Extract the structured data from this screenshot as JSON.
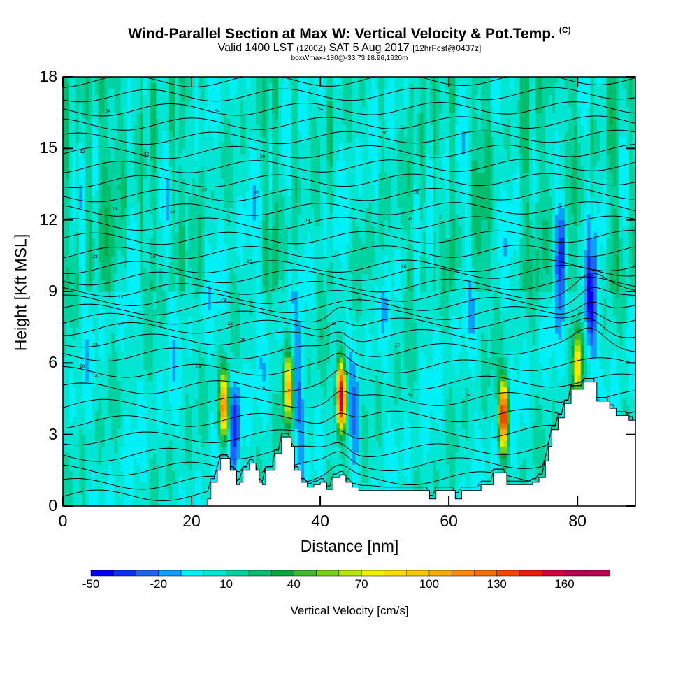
{
  "title": {
    "main": "Wind-Parallel Section at Max W: Vertical Velocity & Pot.Temp.",
    "copyright": "(C)",
    "valid_prefix": "Valid 1400 LST",
    "utc": "(1200Z)",
    "date": "SAT 5 Aug 2017",
    "forecast": "[12hrFcst@0437z]",
    "box": "boxWmax=180@-33.73,18.96,1620m"
  },
  "chart_data": {
    "type": "heatmap",
    "xlabel": "Distance [nm]",
    "ylabel": "Height [Kft MSL]",
    "xlim": [
      0,
      89
    ],
    "ylim": [
      0,
      18
    ],
    "x_ticks": [
      "0",
      "20",
      "40",
      "60",
      "80"
    ],
    "x_tick_values": [
      0,
      20,
      40,
      60,
      80
    ],
    "y_ticks": [
      "0",
      "3",
      "6",
      "9",
      "12",
      "15",
      "18"
    ],
    "y_tick_values": [
      0,
      3,
      6,
      9,
      12,
      15,
      18
    ],
    "colorbar": {
      "title": "Vertical Velocity [cm/s]",
      "labels": [
        "-50",
        "-20",
        "10",
        "40",
        "70",
        "100",
        "130",
        "160"
      ],
      "label_values": [
        -50,
        -20,
        10,
        40,
        70,
        100,
        130,
        160
      ],
      "min": -50,
      "max": 180,
      "step": 10,
      "colors": [
        "#0000f0",
        "#0a32f0",
        "#1e64f5",
        "#0aa0f5",
        "#00f0f8",
        "#00e6d2",
        "#00d2a0",
        "#00be6e",
        "#00aa3c",
        "#3cbe28",
        "#78d214",
        "#b4e60a",
        "#f0f000",
        "#fadc00",
        "#fac800",
        "#faaa00",
        "#fa8c00",
        "#fa6e00",
        "#f54600",
        "#e61e0a",
        "#d2003c",
        "#be0050",
        "#be0050"
      ]
    },
    "terrain": [
      [
        0,
        0
      ],
      [
        22.5,
        0
      ],
      [
        22.5,
        0.3
      ],
      [
        23,
        0.3
      ],
      [
        23,
        1.0
      ],
      [
        24,
        1.0
      ],
      [
        24,
        1.5
      ],
      [
        24.5,
        1.5
      ],
      [
        24.5,
        2.0
      ],
      [
        26,
        2.0
      ],
      [
        26,
        1.5
      ],
      [
        27,
        1.5
      ],
      [
        27,
        0.9
      ],
      [
        27.5,
        0.9
      ],
      [
        27.5,
        1.0
      ],
      [
        28,
        1.0
      ],
      [
        28,
        1.5
      ],
      [
        29,
        1.5
      ],
      [
        29,
        1.8
      ],
      [
        30,
        1.8
      ],
      [
        30,
        1.5
      ],
      [
        30.5,
        1.5
      ],
      [
        30.5,
        1.0
      ],
      [
        31,
        1.0
      ],
      [
        31,
        0.9
      ],
      [
        31.5,
        0.9
      ],
      [
        31.5,
        1.5
      ],
      [
        33,
        1.5
      ],
      [
        33,
        2.2
      ],
      [
        34,
        2.2
      ],
      [
        34,
        2.9
      ],
      [
        35.5,
        2.9
      ],
      [
        35.5,
        2.5
      ],
      [
        36,
        2.5
      ],
      [
        36,
        1.5
      ],
      [
        37,
        1.5
      ],
      [
        37,
        1.0
      ],
      [
        38,
        1.0
      ],
      [
        38,
        0.8
      ],
      [
        39,
        0.8
      ],
      [
        39,
        0.9
      ],
      [
        40,
        0.9
      ],
      [
        40,
        1.0
      ],
      [
        41,
        1.0
      ],
      [
        41,
        0.7
      ],
      [
        42,
        0.7
      ],
      [
        42,
        1.2
      ],
      [
        43,
        1.2
      ],
      [
        43,
        1.3
      ],
      [
        44,
        1.3
      ],
      [
        44,
        1.0
      ],
      [
        45,
        1.0
      ],
      [
        45,
        0.8
      ],
      [
        46,
        0.8
      ],
      [
        46,
        0.65
      ],
      [
        57,
        0.65
      ],
      [
        57,
        0.3
      ],
      [
        58,
        0.3
      ],
      [
        58,
        0.65
      ],
      [
        61,
        0.65
      ],
      [
        61,
        0.3
      ],
      [
        62,
        0.3
      ],
      [
        62,
        0.65
      ],
      [
        65,
        0.65
      ],
      [
        65,
        0.9
      ],
      [
        67,
        0.9
      ],
      [
        67,
        1.4
      ],
      [
        69,
        1.4
      ],
      [
        69,
        0.9
      ],
      [
        73,
        0.9
      ],
      [
        73,
        1.0
      ],
      [
        74,
        1.0
      ],
      [
        74,
        1.2
      ],
      [
        75,
        1.2
      ],
      [
        75,
        1.9
      ],
      [
        75.5,
        1.9
      ],
      [
        75.5,
        2.5
      ],
      [
        76,
        2.5
      ],
      [
        76,
        3.2
      ],
      [
        77,
        3.2
      ],
      [
        77,
        3.7
      ],
      [
        78,
        3.7
      ],
      [
        78,
        4.3
      ],
      [
        79,
        4.3
      ],
      [
        79,
        4.9
      ],
      [
        81,
        4.9
      ],
      [
        81,
        5.2
      ],
      [
        83,
        5.2
      ],
      [
        83,
        4.4
      ],
      [
        85,
        4.4
      ],
      [
        85,
        4.1
      ],
      [
        86,
        4.1
      ],
      [
        86,
        3.8
      ],
      [
        88,
        3.8
      ],
      [
        88,
        3.6
      ],
      [
        89,
        3.6
      ],
      [
        89,
        0
      ]
    ],
    "theta_contour_labels": [
      "34",
      "34",
      "34",
      "32",
      "32",
      "30",
      "30",
      "30",
      "30",
      "30",
      "30",
      "28",
      "28",
      "28",
      "28",
      "26",
      "26",
      "26",
      "26",
      "24",
      "24",
      "24",
      "22",
      "22",
      "22",
      "20",
      "20",
      "20",
      "18",
      "18",
      "18",
      "16",
      "16",
      "14",
      "14",
      "14"
    ],
    "updrafts": [
      {
        "x": 25.0,
        "z": 4.2,
        "w": 120
      },
      {
        "x": 35.0,
        "z": 5.0,
        "w": 95
      },
      {
        "x": 43.2,
        "z": 4.6,
        "w": 175
      },
      {
        "x": 68.5,
        "z": 3.8,
        "w": 150
      },
      {
        "x": 80.0,
        "z": 6.0,
        "w": 80
      }
    ],
    "downdrafts": [
      {
        "x": 26.8,
        "z": 3.6,
        "w": -40
      },
      {
        "x": 36.5,
        "z": 4.5,
        "w": -25
      },
      {
        "x": 45.5,
        "z": 3.5,
        "w": -25
      },
      {
        "x": 77.6,
        "z": 11.0,
        "w": -45
      },
      {
        "x": 82.0,
        "z": 8.5,
        "w": -50
      }
    ]
  }
}
